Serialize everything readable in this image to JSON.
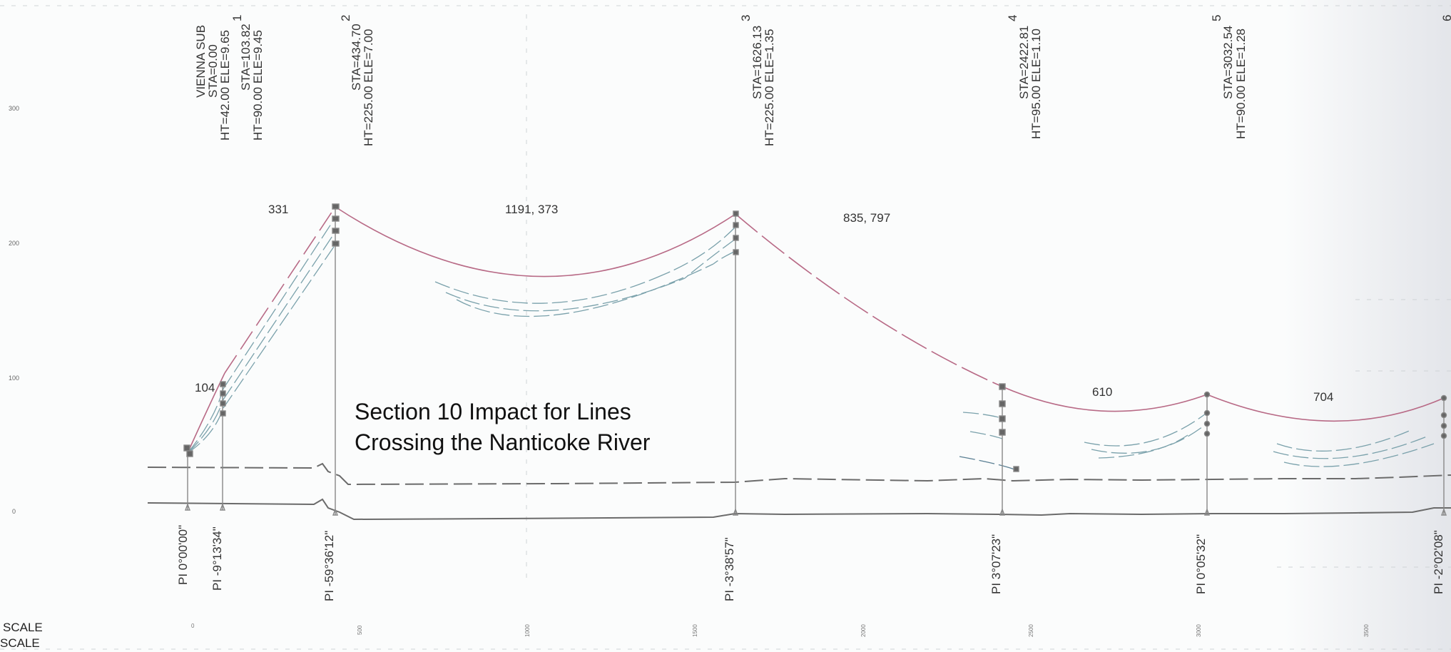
{
  "title_lines": [
    "Section 10 Impact for Lines",
    "Crossing the Nanticoke River"
  ],
  "substation_label": "VIENNA SUB",
  "structures": [
    {
      "num": "",
      "sta": "STA=0.00",
      "ht_ele": "HT=42.00 ELE=9.65",
      "pi": "PI 0°00'00\""
    },
    {
      "num": "1",
      "sta": "STA=103.82",
      "ht_ele": "HT=90.00 ELE=9.45",
      "pi": "PI -9°13'34\""
    },
    {
      "num": "2",
      "sta": "STA=434.70",
      "ht_ele": "HT=225.00 ELE=7.00",
      "pi": "PI -59°36'12\""
    },
    {
      "num": "3",
      "sta": "STA=1626.13",
      "ht_ele": "HT=225.00 ELE=1.35",
      "pi": "PI -3°38'57\""
    },
    {
      "num": "4",
      "sta": "STA=2422.81",
      "ht_ele": "HT=95.00 ELE=1.10",
      "pi": "PI 3°07'23\""
    },
    {
      "num": "5",
      "sta": "STA=3032.54",
      "ht_ele": "HT=90.00 ELE=1.28",
      "pi": "PI 0°05'32\""
    },
    {
      "num": "6",
      "sta": "",
      "ht_ele": "",
      "pi": "PI -2°02'08\""
    }
  ],
  "span_labels": [
    "104",
    "331",
    "1191, 373",
    "835, 797",
    "610",
    "704"
  ],
  "y_ticks": [
    "300",
    "200",
    "100",
    "0"
  ],
  "x_ticks": [
    "0",
    "500",
    "1000",
    "1500",
    "2000",
    "2500",
    "3000",
    "3500"
  ],
  "scale_labels": [
    "SCALE",
    "SCALE"
  ],
  "colors": {
    "conductor": "#b86a86",
    "lower_wires": "#6f9aa6",
    "ground": "#777777",
    "structure": "#888888"
  }
}
